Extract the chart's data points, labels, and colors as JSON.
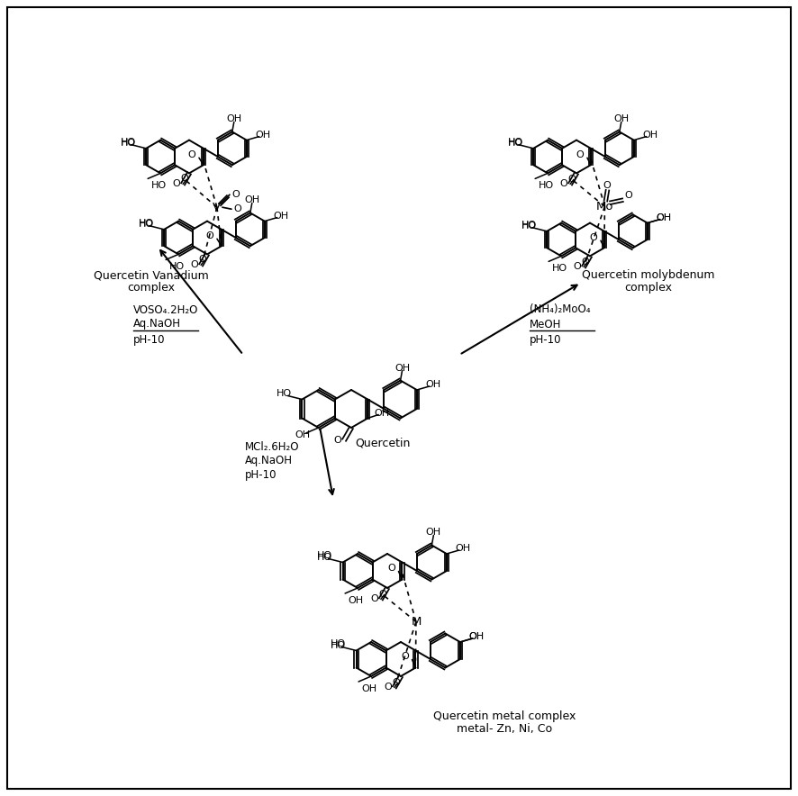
{
  "background_color": "#ffffff",
  "border_color": "#000000",
  "text_color": "#000000",
  "figsize": [
    8.86,
    8.84
  ],
  "dpi": 100,
  "labels": {
    "quercetin_vanadium": [
      "Quercetin Vanadium",
      "complex"
    ],
    "quercetin_molybdenum": [
      "Quercetin molybdenum",
      "complex"
    ],
    "quercetin": "Quercetin",
    "quercetin_metal": [
      "Quercetin metal complex",
      "metal- Zn, Ni, Co"
    ],
    "voso4": "VOSO₄.2H₂O",
    "aq_naoh": "Aq.NaOH",
    "ph10": "pH-10",
    "nh4_moo4": "(NH₄)₂MoO₄",
    "meoh": "MeOH",
    "mcl2": "MCl₂.6H₂O",
    "aq_naoh2": "Aq.NaOH",
    "ph10_2": "pH-10"
  }
}
